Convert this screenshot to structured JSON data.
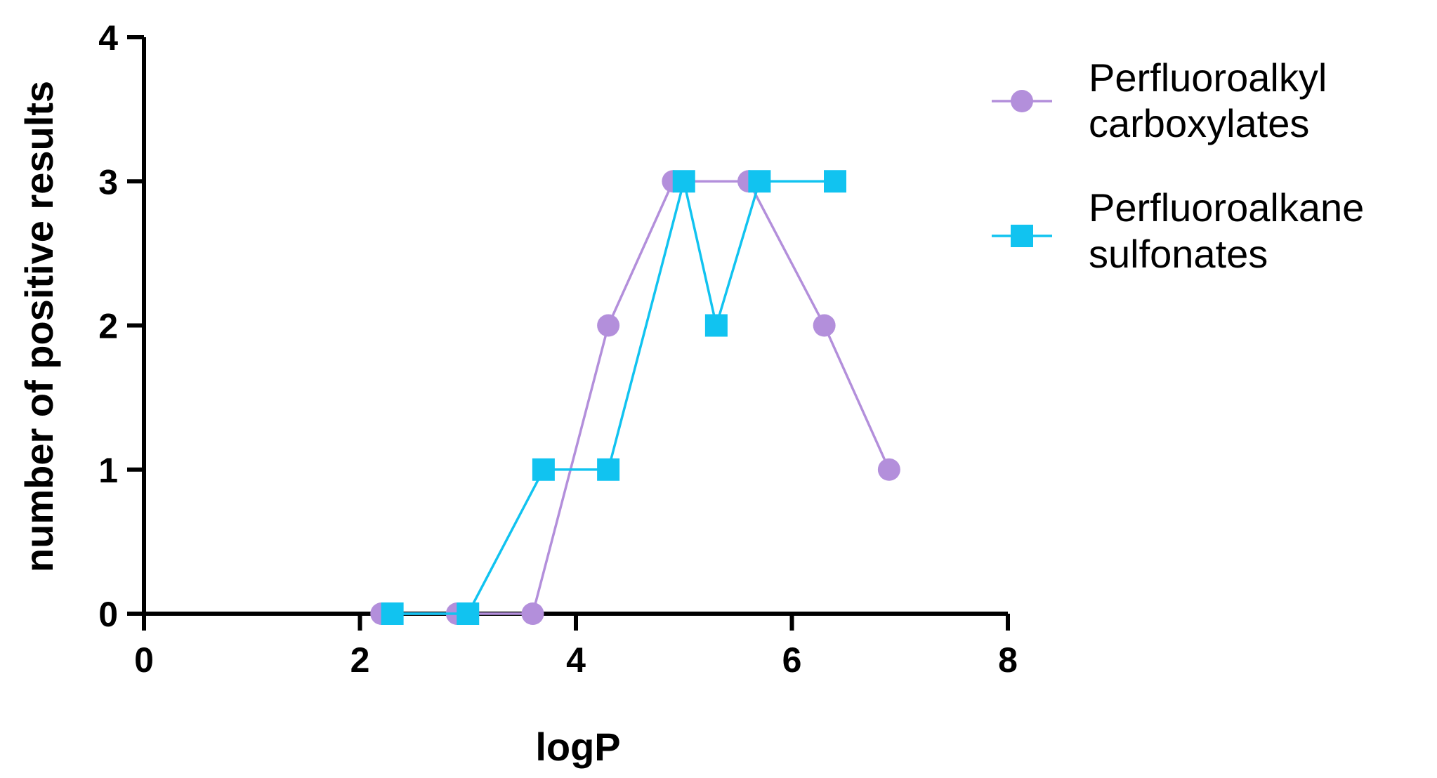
{
  "chart_data": {
    "type": "line",
    "title": "",
    "xlabel": "logP",
    "ylabel": "number of positive results",
    "xlim": [
      0,
      8
    ],
    "ylim": [
      0,
      4
    ],
    "xticks": [
      0,
      2,
      4,
      6,
      8
    ],
    "yticks": [
      0,
      1,
      2,
      3,
      4
    ],
    "grid": false,
    "legend_position": "right",
    "series": [
      {
        "name_lines": [
          "Perfluoroalkyl",
          "carboxylates"
        ],
        "marker": "circle",
        "color": "#b38fdb",
        "x": [
          2.2,
          2.3,
          2.9,
          3.6,
          4.3,
          4.9,
          5.6,
          6.3,
          6.9
        ],
        "y": [
          0,
          0,
          0,
          0,
          2,
          3,
          3,
          2,
          1
        ]
      },
      {
        "name_lines": [
          "Perfluoroalkane",
          "sulfonates"
        ],
        "marker": "square",
        "color": "#11c3f0",
        "x": [
          2.3,
          3.0,
          3.7,
          4.3,
          5.0,
          5.3,
          5.7,
          6.4
        ],
        "y": [
          0,
          0,
          1,
          1,
          3,
          2,
          3,
          3
        ]
      }
    ]
  }
}
